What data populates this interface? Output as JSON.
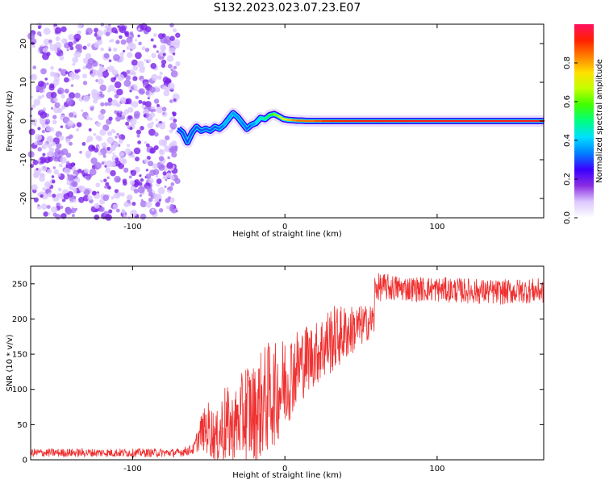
{
  "title": "S132.2023.023.07.23.E07",
  "chart_data": [
    {
      "type": "heatmap",
      "xlabel": "Height of straight line (km)",
      "ylabel": "Frequency (Hz)",
      "xlim": [
        -167,
        170
      ],
      "ylim": [
        -25,
        25
      ],
      "xticks": [
        -100,
        0,
        100
      ],
      "yticks": [
        -20,
        -10,
        0,
        10,
        20
      ],
      "colorbar": {
        "label": "Normalized spectral amplitude",
        "range": [
          0,
          1
        ],
        "ticks": [
          0.0,
          0.2,
          0.4,
          0.6,
          0.8
        ],
        "colors": [
          "#ffffff",
          "#dcc8ff",
          "#8a2be2",
          "#3a00ff",
          "#0080ff",
          "#00e0ff",
          "#00ff80",
          "#40ff00",
          "#c0ff00",
          "#ffe000",
          "#ff8000",
          "#ff2000",
          "#ff1060"
        ]
      },
      "noise_region_x": [
        -167,
        -70
      ],
      "ridge": {
        "x": [
          -70,
          -67,
          -64,
          -61,
          -58,
          -55,
          -52,
          -49,
          -46,
          -43,
          -40,
          -37,
          -34,
          -31,
          -28,
          -25,
          -22,
          -19,
          -16,
          -13,
          -10,
          -7,
          -4,
          -1,
          2,
          5,
          8,
          11,
          14,
          17,
          20,
          25,
          30,
          40,
          60,
          80,
          100,
          120,
          140,
          160,
          170
        ],
        "freq": [
          -2.0,
          -3.0,
          -5.5,
          -3.0,
          -1.5,
          -2.5,
          -2.0,
          -2.5,
          -1.5,
          -2.0,
          -1.0,
          0.5,
          2.0,
          1.0,
          -0.5,
          -2.0,
          -1.0,
          -0.5,
          0.8,
          0.5,
          1.5,
          1.8,
          1.2,
          0.5,
          0.3,
          0.2,
          0.1,
          0.1,
          0.0,
          0.0,
          0.0,
          0.0,
          0.0,
          0.0,
          0.0,
          0.0,
          0.0,
          0.0,
          0.0,
          0.0,
          0.0
        ],
        "amplitude": [
          0.25,
          0.3,
          0.3,
          0.3,
          0.3,
          0.3,
          0.3,
          0.3,
          0.3,
          0.3,
          0.35,
          0.4,
          0.35,
          0.35,
          0.35,
          0.3,
          0.3,
          0.4,
          0.45,
          0.5,
          0.55,
          0.6,
          0.65,
          0.7,
          0.75,
          0.8,
          0.85,
          0.85,
          0.85,
          0.85,
          0.85,
          0.9,
          0.9,
          0.92,
          0.93,
          0.93,
          0.94,
          0.94,
          0.94,
          0.94,
          0.94
        ]
      }
    },
    {
      "type": "line",
      "xlabel": "Height of straight line (km)",
      "ylabel": "SNR (10 * v/v)",
      "xlim": [
        -167,
        170
      ],
      "ylim": [
        0,
        275
      ],
      "xticks": [
        -100,
        0,
        100
      ],
      "yticks": [
        0,
        50,
        100,
        150,
        200,
        250
      ],
      "series": [
        {
          "color": "#f03030",
          "x": [
            -167,
            -150,
            -130,
            -110,
            -90,
            -70,
            -60,
            -55,
            -50,
            -45,
            -40,
            -35,
            -30,
            -25,
            -20,
            -15,
            -10,
            -5,
            0,
            5,
            10,
            15,
            20,
            25,
            30,
            35,
            40,
            45,
            50,
            55,
            59,
            60,
            65,
            80,
            100,
            120,
            140,
            160,
            170
          ],
          "y_mean": [
            10,
            10,
            10,
            10,
            10,
            10,
            15,
            40,
            45,
            30,
            50,
            45,
            55,
            70,
            65,
            80,
            90,
            95,
            110,
            125,
            135,
            145,
            150,
            160,
            170,
            175,
            180,
            185,
            190,
            195,
            200,
            245,
            245,
            243,
            242,
            240,
            238,
            240,
            240
          ],
          "y_spread": [
            6,
            6,
            6,
            6,
            6,
            6,
            8,
            25,
            40,
            35,
            60,
            50,
            55,
            80,
            70,
            80,
            80,
            70,
            70,
            60,
            55,
            50,
            45,
            50,
            50,
            45,
            40,
            35,
            30,
            25,
            25,
            20,
            20,
            18,
            18,
            18,
            18,
            18,
            18
          ]
        }
      ]
    }
  ]
}
